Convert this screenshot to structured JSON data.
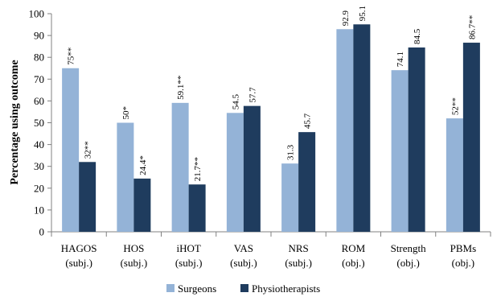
{
  "chart_data": {
    "type": "bar",
    "title": "",
    "xlabel": "",
    "ylabel": "Percentage using outcome",
    "ylim": [
      0,
      100
    ],
    "yticks": [
      0,
      10,
      20,
      30,
      40,
      50,
      60,
      70,
      80,
      90,
      100
    ],
    "grid": false,
    "legend_position": "bottom",
    "categories": [
      [
        "HAGOS",
        "(subj.)"
      ],
      [
        "HOS",
        "(subj.)"
      ],
      [
        "iHOT",
        "(subj.)"
      ],
      [
        "VAS",
        "(subj.)"
      ],
      [
        "NRS",
        "(subj.)"
      ],
      [
        "ROM",
        "(obj.)"
      ],
      [
        "Strength",
        "(obj.)"
      ],
      [
        "PBMs",
        "(obj.)"
      ]
    ],
    "series": [
      {
        "name": "Surgeons",
        "color": "#94b3d7",
        "values": [
          75,
          50,
          59.1,
          54.5,
          31.3,
          92.9,
          74.1,
          52
        ],
        "labels": [
          "75**",
          "50*",
          "59.1**",
          "54.5",
          "31.3",
          "92.9",
          "74.1",
          "52**"
        ]
      },
      {
        "name": "Physiotherapists",
        "color": "#1f3c5e",
        "values": [
          32,
          24.4,
          21.7,
          57.7,
          45.7,
          95.1,
          84.5,
          86.7
        ],
        "labels": [
          "32**",
          "24.4*",
          "21.7**",
          "57.7",
          "45.7",
          "95.1",
          "84.5",
          "86.7**"
        ]
      }
    ]
  }
}
